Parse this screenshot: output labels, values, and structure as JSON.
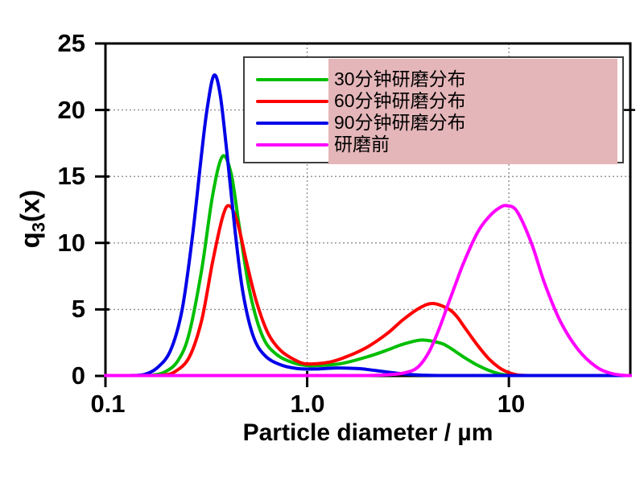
{
  "chart_data": {
    "type": "line",
    "title": "",
    "xlabel": "Particle diameter / µm",
    "ylabel": "q3(x)",
    "ylabel_parts": {
      "base": "q",
      "sub": "3",
      "rest": "(x)"
    },
    "x_scale": "log",
    "xlim": [
      0.1,
      40
    ],
    "ylim": [
      0,
      25
    ],
    "x_ticks": [
      {
        "value": 0.1,
        "label": "0.1"
      },
      {
        "value": 1,
        "label": "1.0"
      },
      {
        "value": 10,
        "label": "10"
      }
    ],
    "y_ticks": [
      {
        "value": 25,
        "label": "25"
      },
      {
        "value": 20,
        "label": "20"
      },
      {
        "value": 15,
        "label": "15"
      },
      {
        "value": 10,
        "label": "10"
      },
      {
        "value": 5,
        "label": "5"
      },
      {
        "value": 0,
        "label": "0"
      }
    ],
    "grid": {
      "horizontal": [
        5,
        10,
        15,
        20
      ],
      "vertical": [
        1,
        10
      ],
      "style": "dotted"
    },
    "legend": {
      "position": "top-right",
      "highlight_color": "#E5B6B9"
    },
    "series": [
      {
        "name": "30分钟研磨分布",
        "color": "#00BE00",
        "peaks": [
          {
            "x": 0.38,
            "y": 16.5
          },
          {
            "x": 3.7,
            "y": 2.7
          }
        ],
        "points": [
          [
            0.1,
            0
          ],
          [
            0.14,
            0
          ],
          [
            0.17,
            0.05
          ],
          [
            0.2,
            0.35
          ],
          [
            0.23,
            1.2
          ],
          [
            0.26,
            3.2
          ],
          [
            0.3,
            8.0
          ],
          [
            0.34,
            13.6
          ],
          [
            0.38,
            16.5
          ],
          [
            0.42,
            15.2
          ],
          [
            0.46,
            11.3
          ],
          [
            0.52,
            6.3
          ],
          [
            0.6,
            3.0
          ],
          [
            0.7,
            1.65
          ],
          [
            0.85,
            1.0
          ],
          [
            1.0,
            0.78
          ],
          [
            1.2,
            0.8
          ],
          [
            1.5,
            0.95
          ],
          [
            2.0,
            1.45
          ],
          [
            2.5,
            1.95
          ],
          [
            3.0,
            2.4
          ],
          [
            3.7,
            2.7
          ],
          [
            4.5,
            2.5
          ],
          [
            5.0,
            2.2
          ],
          [
            6.0,
            1.4
          ],
          [
            7.0,
            0.8
          ],
          [
            8.0,
            0.4
          ],
          [
            9.0,
            0.16
          ],
          [
            10.0,
            0.05
          ],
          [
            11.5,
            0.01
          ],
          [
            14,
            0
          ],
          [
            25,
            0
          ],
          [
            40,
            0
          ]
        ]
      },
      {
        "name": "60分钟研磨分布",
        "color": "#FF0000",
        "peaks": [
          {
            "x": 0.41,
            "y": 12.8
          },
          {
            "x": 4.2,
            "y": 5.45
          }
        ],
        "points": [
          [
            0.1,
            0
          ],
          [
            0.16,
            0
          ],
          [
            0.19,
            0.05
          ],
          [
            0.22,
            0.3
          ],
          [
            0.26,
            1.4
          ],
          [
            0.3,
            4.2
          ],
          [
            0.34,
            8.6
          ],
          [
            0.38,
            11.9
          ],
          [
            0.41,
            12.8
          ],
          [
            0.45,
            11.6
          ],
          [
            0.5,
            8.6
          ],
          [
            0.56,
            5.6
          ],
          [
            0.64,
            3.2
          ],
          [
            0.74,
            1.9
          ],
          [
            0.87,
            1.2
          ],
          [
            1.0,
            0.9
          ],
          [
            1.3,
            1.05
          ],
          [
            1.6,
            1.5
          ],
          [
            2.0,
            2.2
          ],
          [
            2.5,
            3.2
          ],
          [
            3.0,
            4.25
          ],
          [
            3.6,
            5.1
          ],
          [
            4.2,
            5.45
          ],
          [
            5.0,
            5.05
          ],
          [
            5.5,
            4.5
          ],
          [
            6.0,
            3.7
          ],
          [
            7.0,
            2.3
          ],
          [
            8.0,
            1.25
          ],
          [
            9.0,
            0.6
          ],
          [
            10.0,
            0.25
          ],
          [
            11.0,
            0.08
          ],
          [
            12.5,
            0.01
          ],
          [
            15,
            0
          ],
          [
            25,
            0
          ],
          [
            40,
            0
          ]
        ]
      },
      {
        "name": "90分钟研磨分布",
        "color": "#0000E8",
        "peaks": [
          {
            "x": 0.345,
            "y": 22.6
          }
        ],
        "points": [
          [
            0.1,
            0
          ],
          [
            0.13,
            0
          ],
          [
            0.155,
            0.1
          ],
          [
            0.18,
            0.6
          ],
          [
            0.21,
            1.9
          ],
          [
            0.24,
            5.0
          ],
          [
            0.27,
            10.5
          ],
          [
            0.3,
            16.8
          ],
          [
            0.32,
            20.2
          ],
          [
            0.345,
            22.6
          ],
          [
            0.37,
            21.2
          ],
          [
            0.4,
            16.8
          ],
          [
            0.44,
            10.8
          ],
          [
            0.48,
            6.3
          ],
          [
            0.54,
            3.0
          ],
          [
            0.62,
            1.5
          ],
          [
            0.75,
            0.8
          ],
          [
            0.9,
            0.55
          ],
          [
            1.1,
            0.52
          ],
          [
            1.4,
            0.6
          ],
          [
            1.8,
            0.55
          ],
          [
            2.2,
            0.4
          ],
          [
            2.8,
            0.2
          ],
          [
            3.5,
            0.07
          ],
          [
            4.5,
            0.01
          ],
          [
            6,
            0
          ],
          [
            10,
            0
          ],
          [
            25,
            0
          ],
          [
            40,
            0
          ]
        ]
      },
      {
        "name": "研磨前",
        "color": "#FF00FF",
        "peaks": [
          {
            "x": 9.8,
            "y": 12.8
          }
        ],
        "points": [
          [
            0.1,
            0
          ],
          [
            0.6,
            0
          ],
          [
            1.2,
            0
          ],
          [
            2.0,
            0.03
          ],
          [
            2.6,
            0.1
          ],
          [
            3.0,
            0.22
          ],
          [
            3.5,
            0.6
          ],
          [
            4.0,
            1.75
          ],
          [
            4.5,
            3.5
          ],
          [
            5.0,
            5.4
          ],
          [
            5.5,
            7.1
          ],
          [
            6.0,
            8.6
          ],
          [
            7.0,
            10.8
          ],
          [
            8.0,
            12.0
          ],
          [
            9.0,
            12.65
          ],
          [
            9.8,
            12.8
          ],
          [
            11.0,
            12.35
          ],
          [
            13.0,
            9.9
          ],
          [
            15.0,
            7.0
          ],
          [
            18.0,
            4.1
          ],
          [
            22.0,
            2.0
          ],
          [
            27.0,
            0.7
          ],
          [
            32.0,
            0.2
          ],
          [
            38.0,
            0.03
          ],
          [
            40.0,
            0
          ]
        ]
      }
    ]
  },
  "colors": {
    "background": "#FFFFFF",
    "frame": "#000000",
    "grid": "#8F8F8F",
    "text": "#000000",
    "legend_border": "#3F3F3F",
    "legend_background": "#FFFFFF",
    "legend_highlight": "#E5B6B9"
  }
}
